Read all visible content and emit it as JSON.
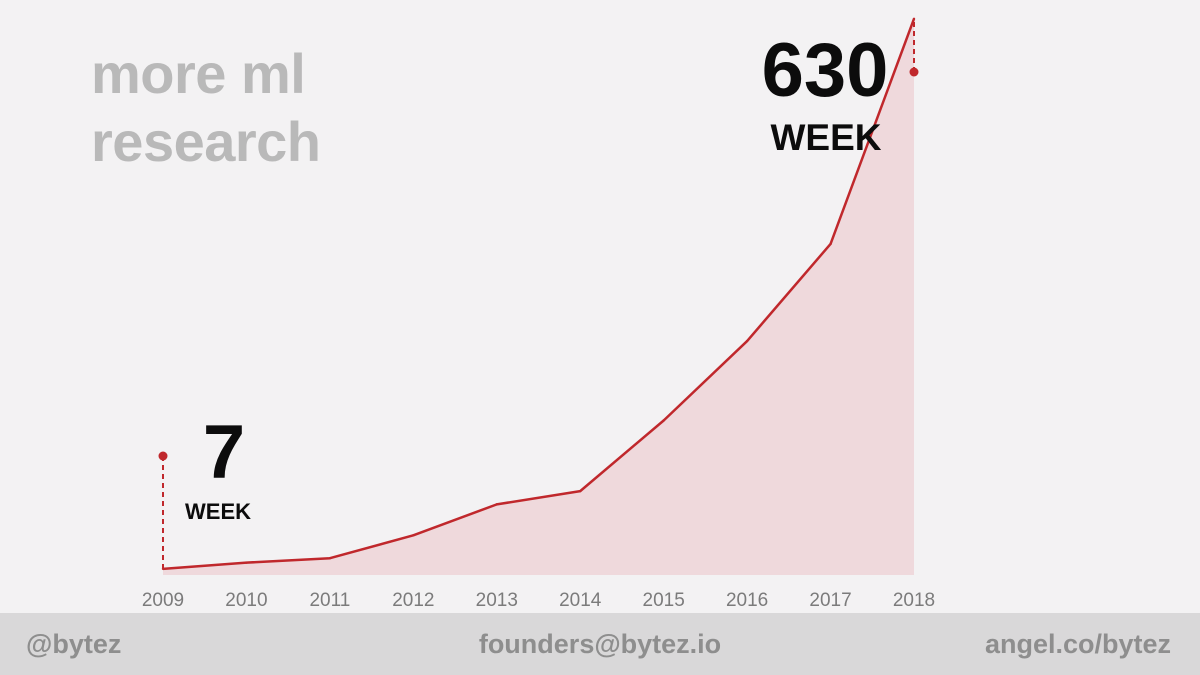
{
  "title": {
    "line1": "more ml",
    "line2": "research"
  },
  "chart_data": {
    "type": "area",
    "x": [
      "2009",
      "2010",
      "2011",
      "2012",
      "2013",
      "2014",
      "2015",
      "2016",
      "2017",
      "2018"
    ],
    "values": [
      7,
      14,
      19,
      45,
      80,
      95,
      175,
      265,
      375,
      630
    ],
    "ylim": [
      0,
      640
    ],
    "grid": false,
    "legend": "none",
    "annotations": [
      {
        "x": "2009",
        "value": "7",
        "unit": "WEEK"
      },
      {
        "x": "2018",
        "value": "630",
        "unit": "WEEK"
      }
    ],
    "colors": {
      "line": "#c0282c",
      "fill": "#efd9dc",
      "dash": "#c0282c"
    }
  },
  "footer": {
    "left": "@bytez",
    "center": "founders@bytez.io",
    "right": "angel.co/bytez"
  }
}
